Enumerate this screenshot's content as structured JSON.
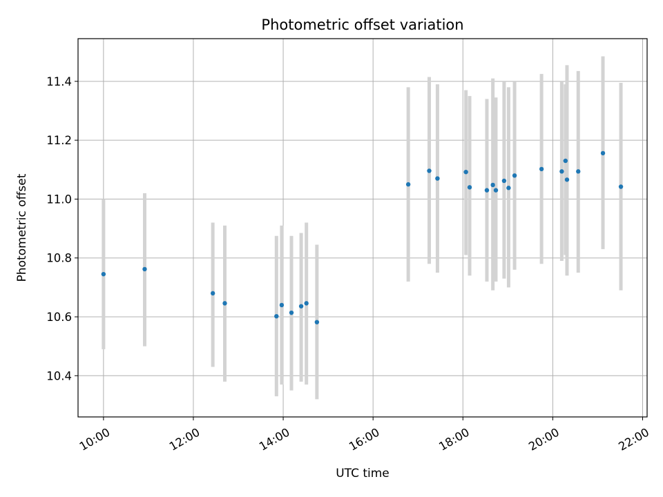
{
  "chart_data": {
    "type": "scatter",
    "title": "Photometric offset variation",
    "xlabel": "UTC time",
    "ylabel": "Photometric offset",
    "xlim": [
      "09:26",
      "22:06"
    ],
    "ylim": [
      10.26,
      11.545
    ],
    "grid": true,
    "x_ticks": [
      "10:00",
      "12:00",
      "14:00",
      "16:00",
      "18:00",
      "20:00",
      "22:00"
    ],
    "y_ticks": [
      10.4,
      10.6,
      10.8,
      11.0,
      11.2,
      11.4
    ],
    "y_tick_labels": [
      "10.4",
      "10.6",
      "10.8",
      "11.0",
      "11.2",
      "11.4"
    ],
    "series": [
      {
        "marker_color": "#1f77b4",
        "errorbar_color": "#d3d3d3",
        "points": [
          {
            "t": "10:00",
            "y": 10.745,
            "lo": 10.49,
            "hi": 11.0
          },
          {
            "t": "10:55",
            "y": 10.762,
            "lo": 10.5,
            "hi": 11.02
          },
          {
            "t": "12:26",
            "y": 10.68,
            "lo": 10.43,
            "hi": 10.92
          },
          {
            "t": "12:42",
            "y": 10.646,
            "lo": 10.38,
            "hi": 10.91
          },
          {
            "t": "13:51",
            "y": 10.602,
            "lo": 10.33,
            "hi": 10.875
          },
          {
            "t": "13:58",
            "y": 10.64,
            "lo": 10.37,
            "hi": 10.91
          },
          {
            "t": "14:11",
            "y": 10.614,
            "lo": 10.35,
            "hi": 10.875
          },
          {
            "t": "14:24",
            "y": 10.636,
            "lo": 10.38,
            "hi": 10.885
          },
          {
            "t": "14:31",
            "y": 10.646,
            "lo": 10.37,
            "hi": 10.92
          },
          {
            "t": "14:45",
            "y": 10.582,
            "lo": 10.32,
            "hi": 10.845
          },
          {
            "t": "16:47",
            "y": 11.05,
            "lo": 10.72,
            "hi": 11.38
          },
          {
            "t": "17:15",
            "y": 11.096,
            "lo": 10.78,
            "hi": 11.415
          },
          {
            "t": "17:26",
            "y": 11.07,
            "lo": 10.75,
            "hi": 11.39
          },
          {
            "t": "18:04",
            "y": 11.092,
            "lo": 10.81,
            "hi": 11.37
          },
          {
            "t": "18:09",
            "y": 11.04,
            "lo": 10.74,
            "hi": 11.35
          },
          {
            "t": "18:32",
            "y": 11.03,
            "lo": 10.72,
            "hi": 11.34
          },
          {
            "t": "18:40",
            "y": 11.048,
            "lo": 10.69,
            "hi": 11.41
          },
          {
            "t": "18:44",
            "y": 11.03,
            "lo": 10.72,
            "hi": 11.345
          },
          {
            "t": "18:55",
            "y": 11.062,
            "lo": 10.73,
            "hi": 11.4
          },
          {
            "t": "19:01",
            "y": 11.038,
            "lo": 10.7,
            "hi": 11.38
          },
          {
            "t": "19:09",
            "y": 11.08,
            "lo": 10.76,
            "hi": 11.4
          },
          {
            "t": "19:45",
            "y": 11.102,
            "lo": 10.78,
            "hi": 11.425
          },
          {
            "t": "20:12",
            "y": 11.094,
            "lo": 10.79,
            "hi": 11.4
          },
          {
            "t": "20:17",
            "y": 11.13,
            "lo": 10.81,
            "hi": 11.39
          },
          {
            "t": "20:19",
            "y": 11.066,
            "lo": 10.74,
            "hi": 11.455
          },
          {
            "t": "20:34",
            "y": 11.094,
            "lo": 10.75,
            "hi": 11.435
          },
          {
            "t": "21:07",
            "y": 11.156,
            "lo": 10.83,
            "hi": 11.485
          },
          {
            "t": "21:31",
            "y": 11.042,
            "lo": 10.69,
            "hi": 11.395
          }
        ]
      }
    ]
  }
}
